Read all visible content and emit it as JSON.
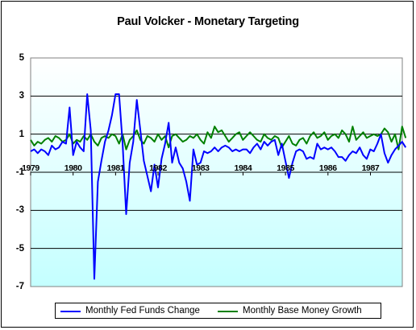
{
  "chart_data": {
    "type": "line",
    "title": "Paul Volcker - Monetary Targeting",
    "xlabel": "",
    "ylabel": "",
    "ylim": [
      -7,
      5
    ],
    "xlim": [
      1979.0,
      1987.75
    ],
    "y_ticks": [
      "5",
      "3",
      "1",
      "-1",
      "-3",
      "-5",
      "-7"
    ],
    "x_ticks": [
      "1979",
      "1980",
      "1981",
      "1982",
      "1983",
      "1984",
      "1985",
      "1986",
      "1987"
    ],
    "grid": "horizontal",
    "plot_background": "gradient light-cyan to white",
    "legend_position": "bottom",
    "series": [
      {
        "name": "Monthly Fed Funds Change",
        "color": "#0000ff",
        "start": 1979.0,
        "step": 0.0833,
        "values": [
          0.1,
          0.2,
          0.0,
          0.2,
          0.1,
          -0.1,
          0.4,
          0.2,
          0.3,
          0.6,
          0.5,
          2.4,
          -0.1,
          0.6,
          0.3,
          0.1,
          3.1,
          1.2,
          -6.6,
          -1.5,
          -0.4,
          0.6,
          1.2,
          2.0,
          3.1,
          3.1,
          0.5,
          -3.2,
          -0.5,
          0.6,
          2.8,
          1.2,
          -0.4,
          -1.2,
          -2.0,
          -0.6,
          -1.8,
          -0.3,
          0.5,
          1.6,
          -0.5,
          0.3,
          -0.5,
          -0.8,
          -1.5,
          -2.5,
          0.2,
          -0.6,
          -0.5,
          0.1,
          0.0,
          0.1,
          0.3,
          0.1,
          0.3,
          0.4,
          0.3,
          0.1,
          0.2,
          0.1,
          0.2,
          0.2,
          0.0,
          0.3,
          0.5,
          0.2,
          0.6,
          0.4,
          0.6,
          0.7,
          -0.1,
          0.5,
          -0.4,
          -1.3,
          -0.5,
          0.1,
          0.2,
          0.1,
          -0.3,
          -0.2,
          -0.3,
          0.5,
          0.2,
          0.3,
          0.2,
          0.3,
          0.1,
          -0.2,
          -0.2,
          -0.4,
          -0.1,
          0.1,
          0.0,
          0.3,
          -0.1,
          -0.3,
          0.2,
          0.1,
          0.5,
          1.0,
          0.0,
          -0.5,
          -0.1,
          0.2,
          0.4,
          0.6,
          0.3
        ]
      },
      {
        "name": "Monthly Base Money Growth",
        "color": "#008000",
        "start": 1979.0,
        "step": 0.0833,
        "values": [
          0.7,
          0.4,
          0.6,
          0.5,
          0.7,
          0.8,
          0.6,
          0.9,
          0.8,
          0.6,
          0.7,
          1.0,
          0.5,
          0.7,
          0.6,
          0.9,
          0.7,
          1.0,
          0.6,
          0.4,
          0.8,
          0.9,
          0.8,
          1.0,
          0.9,
          0.5,
          1.0,
          0.2,
          0.7,
          0.9,
          1.2,
          0.7,
          0.5,
          0.9,
          0.8,
          0.6,
          1.0,
          0.7,
          0.9,
          0.3,
          0.9,
          1.0,
          0.8,
          0.6,
          0.7,
          0.9,
          0.8,
          1.0,
          0.7,
          0.5,
          1.1,
          0.8,
          1.4,
          1.1,
          1.2,
          0.9,
          0.6,
          0.8,
          1.0,
          1.1,
          0.7,
          0.9,
          1.1,
          0.9,
          0.7,
          0.6,
          1.0,
          0.8,
          0.7,
          0.9,
          0.8,
          0.3,
          0.6,
          0.9,
          0.5,
          0.4,
          0.7,
          0.8,
          0.5,
          0.9,
          1.1,
          0.8,
          0.9,
          1.1,
          0.7,
          0.9,
          1.0,
          0.8,
          1.2,
          1.0,
          0.6,
          1.4,
          0.7,
          0.9,
          1.1,
          0.8,
          0.9,
          1.0,
          0.9,
          1.0,
          1.3,
          1.1,
          0.6,
          1.0,
          0.2,
          1.4,
          0.8
        ]
      }
    ]
  }
}
